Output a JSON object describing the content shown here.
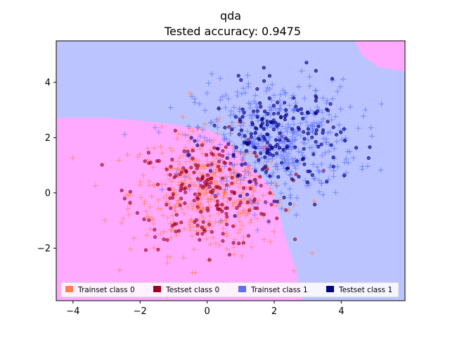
{
  "chart_data": {
    "type": "scatter",
    "title": "qda",
    "subtitle": "Tested accuracy: 0.9475",
    "xlabel": "",
    "ylabel": "",
    "xlim": [
      -4.5,
      5.9
    ],
    "ylim": [
      -3.9,
      5.5
    ],
    "x_ticks": [
      -4,
      -2,
      0,
      2,
      4
    ],
    "y_ticks": [
      -2,
      0,
      2,
      4
    ],
    "x_tick_labels": [
      "−4",
      "−2",
      "0",
      "2",
      "4"
    ],
    "y_tick_labels": [
      "−2",
      "0",
      "2",
      "4"
    ],
    "grid": false,
    "legend_placement": "lower-center",
    "decision_regions": {
      "class0_color": "#ffaaff",
      "class1_color": "#bbc4ff",
      "class0_boundary_points": [
        [
          -4.5,
          2.72
        ],
        [
          -3.0,
          2.72
        ],
        [
          -1.5,
          2.55
        ],
        [
          0.0,
          2.3
        ],
        [
          0.6,
          1.9
        ],
        [
          1.1,
          1.2
        ],
        [
          1.6,
          0.6
        ],
        [
          1.9,
          0.2
        ],
        [
          2.1,
          -0.5
        ],
        [
          2.3,
          -1.5
        ],
        [
          2.6,
          -2.6
        ],
        [
          2.85,
          -3.9
        ]
      ],
      "class0_corner_points": [
        [
          5.9,
          4.4
        ],
        [
          5.1,
          4.55
        ],
        [
          4.6,
          5.0
        ],
        [
          4.4,
          5.5
        ],
        [
          5.9,
          5.5
        ]
      ]
    },
    "series": [
      {
        "name": "Trainset class 0",
        "marker": "plus",
        "color": "#ff7f50",
        "center": [
          0.0,
          0.0
        ],
        "spread": [
          1.15,
          1.1
        ],
        "count": 450
      },
      {
        "name": "Testset class 0",
        "marker": "dot",
        "color": "#a00020",
        "center": [
          0.0,
          0.0
        ],
        "spread": [
          1.1,
          1.0
        ],
        "count": 200
      },
      {
        "name": "Trainset class 1",
        "marker": "plus",
        "color": "#5a6fff",
        "center": [
          2.05,
          1.95
        ],
        "spread": [
          1.2,
          1.05
        ],
        "count": 450
      },
      {
        "name": "Testset class 1",
        "marker": "dot",
        "color": "#000080",
        "center": [
          2.1,
          1.95
        ],
        "spread": [
          1.0,
          0.95
        ],
        "count": 200
      }
    ]
  }
}
